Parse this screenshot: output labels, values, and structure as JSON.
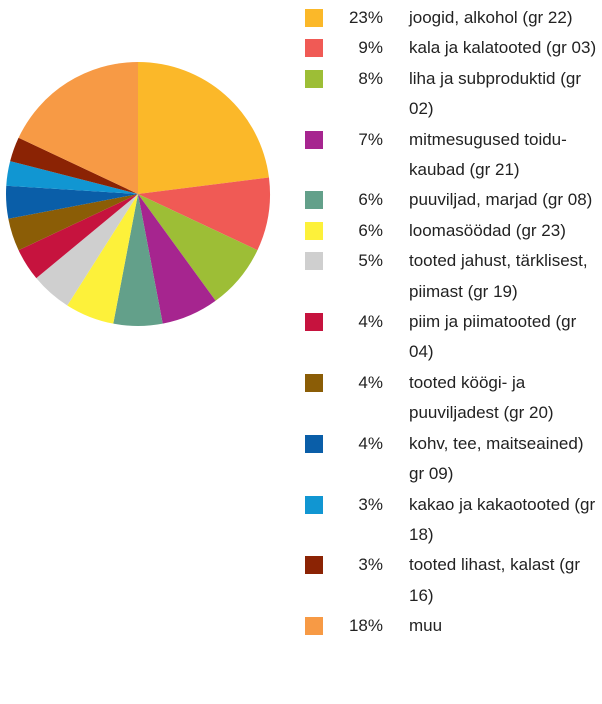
{
  "chart_data": {
    "type": "pie",
    "categories": [
      "joogid, alkohol (gr 22)",
      "kala ja kalatooted (gr 03)",
      "liha ja subproduktid (gr 02)",
      "mitmesugused toidu­kaubad (gr 21)",
      "puuviljad, marjad (gr 08)",
      "loomasöödad (gr 23)",
      "tooted jahust, tärkli­sest, piimast (gr 19)",
      "piim ja piimatooted (gr 04)",
      "tooted köögi- ja puuviljadest (gr 20)",
      "kohv, tee, maitse­ained) gr 09)",
      "kakao ja kakaotooted (gr 18)",
      "tooted lihast, kalast (gr 16)",
      "muu"
    ],
    "values": [
      23,
      9,
      8,
      7,
      6,
      6,
      5,
      4,
      4,
      4,
      3,
      3,
      18
    ],
    "value_labels": [
      "23%",
      "9%",
      "8%",
      "7%",
      "6%",
      "6%",
      "5%",
      "4%",
      "4%",
      "4%",
      "3%",
      "3%",
      "18%"
    ],
    "colors": [
      "#fbb829",
      "#f05a55",
      "#9dbe36",
      "#a6258f",
      "#63a08a",
      "#fdf13a",
      "#cfcfcf",
      "#c6133e",
      "#8b5d06",
      "#0a5ea8",
      "#1196d2",
      "#8b2304",
      "#f79a45"
    ]
  }
}
